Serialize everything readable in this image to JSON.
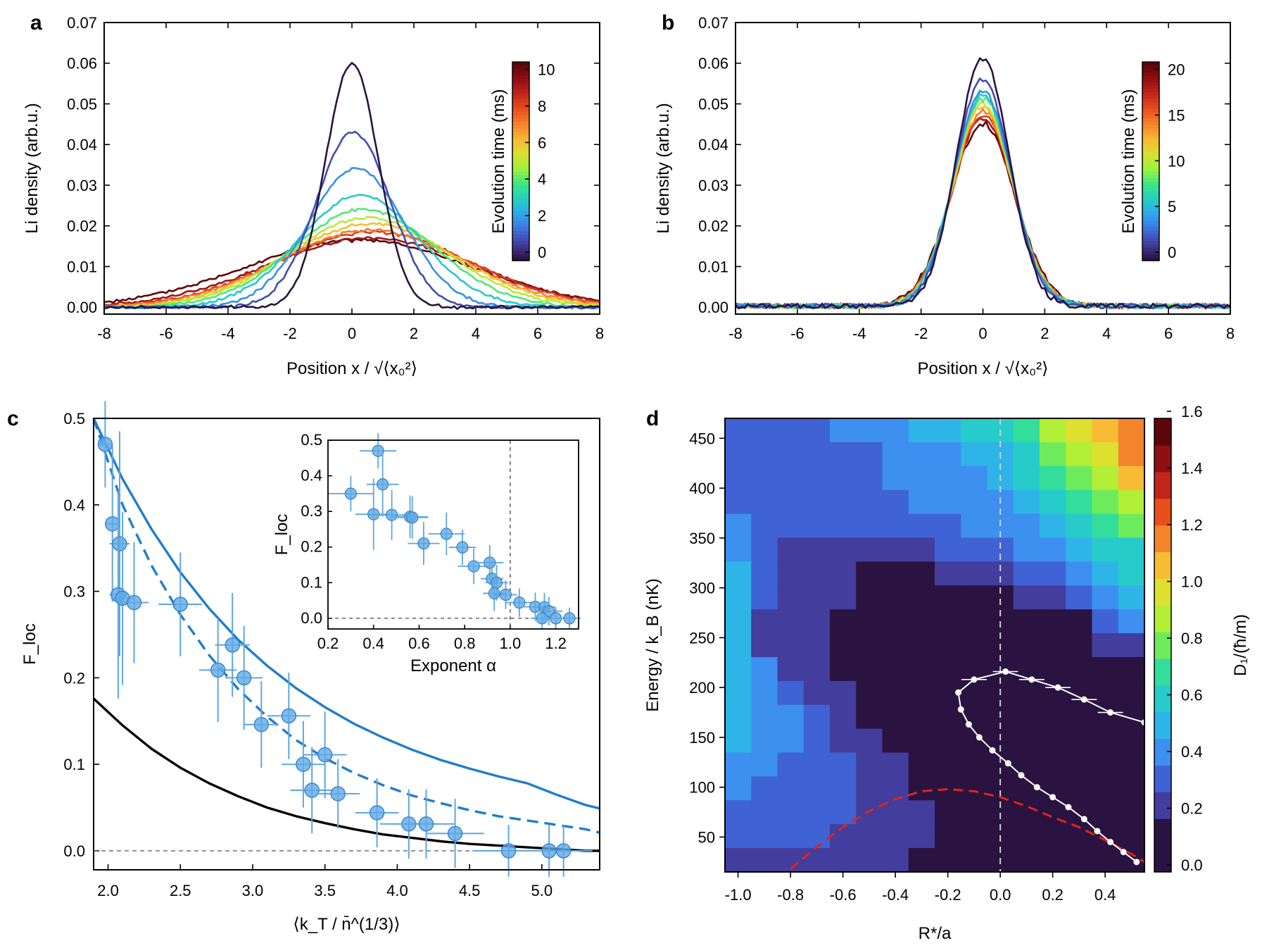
{
  "colormap": [
    "#2a1340",
    "#433d9d",
    "#3e72dc",
    "#2fa7ee",
    "#25cfc2",
    "#3ce584",
    "#9df23f",
    "#d8e030",
    "#f8b833",
    "#f7822a",
    "#e94e1d",
    "#c2261b",
    "#8f0f12",
    "#5c0609"
  ],
  "panels": {
    "a": {
      "label": "a",
      "xticks": [
        "-8",
        "-6",
        "-4",
        "-2",
        "0",
        "2",
        "4",
        "6",
        "8"
      ],
      "yticks": [
        "0.00",
        "0.01",
        "0.02",
        "0.03",
        "0.04",
        "0.05",
        "0.06",
        "0.07"
      ],
      "xlabel": "Position  x / √⟨x₀²⟩",
      "ylabel": "Li  density  (arb.u.)",
      "colorbar": {
        "label": "Evolution  time  (ms)",
        "ticks": [
          "0",
          "2",
          "4",
          "6",
          "8",
          "10"
        ]
      }
    },
    "b": {
      "label": "b",
      "xticks": [
        "-8",
        "-6",
        "-4",
        "-2",
        "0",
        "2",
        "4",
        "6",
        "8"
      ],
      "yticks": [
        "0.00",
        "0.01",
        "0.02",
        "0.03",
        "0.04",
        "0.05",
        "0.06",
        "0.07"
      ],
      "xlabel": "Position  x / √⟨x₀²⟩",
      "ylabel": "Li  density  (arb.u.)",
      "colorbar": {
        "label": "Evolution  time  (ms)",
        "ticks": [
          "0",
          "5",
          "10",
          "15",
          "20"
        ]
      }
    },
    "c": {
      "label": "c",
      "xticks": [
        "2.0",
        "2.5",
        "3.0",
        "3.5",
        "4.0",
        "4.5",
        "5.0"
      ],
      "yticks": [
        "0.0",
        "0.1",
        "0.2",
        "0.3",
        "0.4",
        "0.5"
      ],
      "xlabel": "⟨k_T / n̄^(1/3)⟩",
      "ylabel": "F_loc",
      "inset": {
        "xticks": [
          "0.2",
          "0.4",
          "0.6",
          "0.8",
          "1.0",
          "1.2"
        ],
        "yticks": [
          "0.0",
          "0.1",
          "0.2",
          "0.3",
          "0.4",
          "0.5"
        ],
        "xlabel": "Exponent α",
        "ylabel": "F_loc"
      }
    },
    "d": {
      "label": "d",
      "xticks": [
        "-1.0",
        "-0.8",
        "-0.6",
        "-0.4",
        "-0.2",
        "0.0",
        "0.2",
        "0.4"
      ],
      "yticks": [
        "50",
        "100",
        "150",
        "200",
        "250",
        "300",
        "350",
        "400",
        "450"
      ],
      "xlabel": "R*/a",
      "ylabel": "Energy / k_B  (nK)",
      "colorbar": {
        "label": "D₁/(ħ/m)",
        "ticks": [
          "0.0",
          "0.2",
          "0.4",
          "0.6",
          "0.8",
          "1.0",
          "1.2",
          "1.4",
          "1.6"
        ]
      }
    }
  },
  "chart_data": [
    {
      "panel": "a",
      "type": "line",
      "xlim": [
        -8,
        8
      ],
      "ylim": [
        0,
        0.07
      ],
      "series": [
        {
          "time_ms": 0,
          "peak": 0.06,
          "width": 0.85,
          "shift": 0.0
        },
        {
          "time_ms": 1,
          "peak": 0.043,
          "width": 1.2,
          "shift": 0.05
        },
        {
          "time_ms": 2,
          "peak": 0.034,
          "width": 1.55,
          "shift": 0.15
        },
        {
          "time_ms": 3,
          "peak": 0.0275,
          "width": 1.95,
          "shift": 0.25
        },
        {
          "time_ms": 4,
          "peak": 0.024,
          "width": 2.3,
          "shift": 0.4
        },
        {
          "time_ms": 5,
          "peak": 0.022,
          "width": 2.55,
          "shift": 0.5
        },
        {
          "time_ms": 6,
          "peak": 0.0205,
          "width": 2.75,
          "shift": 0.6
        },
        {
          "time_ms": 7,
          "peak": 0.019,
          "width": 2.95,
          "shift": 0.6
        },
        {
          "time_ms": 8,
          "peak": 0.0185,
          "width": 3.1,
          "shift": 0.7
        },
        {
          "time_ms": 9,
          "peak": 0.017,
          "width": 3.35,
          "shift": 0.6
        },
        {
          "time_ms": 10,
          "peak": 0.0165,
          "width": 3.6,
          "shift": 0.2
        }
      ]
    },
    {
      "panel": "b",
      "type": "line",
      "xlim": [
        -8,
        8
      ],
      "ylim": [
        0,
        0.07
      ],
      "series": [
        {
          "time_ms": 0,
          "peak": 0.061,
          "width": 0.85
        },
        {
          "time_ms": 2,
          "peak": 0.056,
          "width": 0.9
        },
        {
          "time_ms": 4,
          "peak": 0.053,
          "width": 0.93
        },
        {
          "time_ms": 6,
          "peak": 0.052,
          "width": 0.95
        },
        {
          "time_ms": 8,
          "peak": 0.051,
          "width": 0.96
        },
        {
          "time_ms": 10,
          "peak": 0.05,
          "width": 0.97
        },
        {
          "time_ms": 12,
          "peak": 0.049,
          "width": 0.98
        },
        {
          "time_ms": 14,
          "peak": 0.048,
          "width": 0.99
        },
        {
          "time_ms": 16,
          "peak": 0.047,
          "width": 1.0
        },
        {
          "time_ms": 18,
          "peak": 0.046,
          "width": 1.02
        },
        {
          "time_ms": 20,
          "peak": 0.045,
          "width": 1.04
        }
      ]
    },
    {
      "panel": "c",
      "type": "scatter",
      "xlim": [
        1.9,
        5.4
      ],
      "ylim": [
        -0.02,
        0.5
      ],
      "points": [
        {
          "x": 1.98,
          "y": 0.47,
          "xe": 0.05,
          "ye": 0.05
        },
        {
          "x": 2.03,
          "y": 0.378,
          "xe": 0.05,
          "ye": 0.09
        },
        {
          "x": 2.08,
          "y": 0.355,
          "xe": 0.07,
          "ye": 0.13
        },
        {
          "x": 2.07,
          "y": 0.296,
          "xe": 0.06,
          "ye": 0.12
        },
        {
          "x": 2.1,
          "y": 0.292,
          "xe": 0.08,
          "ye": 0.1
        },
        {
          "x": 2.18,
          "y": 0.287,
          "xe": 0.1,
          "ye": 0.07
        },
        {
          "x": 2.5,
          "y": 0.285,
          "xe": 0.15,
          "ye": 0.06
        },
        {
          "x": 2.86,
          "y": 0.238,
          "xe": 0.12,
          "ye": 0.06
        },
        {
          "x": 2.76,
          "y": 0.209,
          "xe": 0.13,
          "ye": 0.06
        },
        {
          "x": 2.94,
          "y": 0.2,
          "xe": 0.13,
          "ye": 0.06
        },
        {
          "x": 3.06,
          "y": 0.146,
          "xe": 0.12,
          "ye": 0.05
        },
        {
          "x": 3.25,
          "y": 0.156,
          "xe": 0.15,
          "ye": 0.05
        },
        {
          "x": 3.35,
          "y": 0.1,
          "xe": 0.15,
          "ye": 0.05
        },
        {
          "x": 3.5,
          "y": 0.111,
          "xe": 0.15,
          "ye": 0.05
        },
        {
          "x": 3.41,
          "y": 0.07,
          "xe": 0.15,
          "ye": 0.05
        },
        {
          "x": 3.59,
          "y": 0.066,
          "xe": 0.15,
          "ye": 0.04
        },
        {
          "x": 3.86,
          "y": 0.044,
          "xe": 0.15,
          "ye": 0.04
        },
        {
          "x": 4.08,
          "y": 0.031,
          "xe": 0.2,
          "ye": 0.04
        },
        {
          "x": 4.2,
          "y": 0.031,
          "xe": 0.2,
          "ye": 0.04
        },
        {
          "x": 4.4,
          "y": 0.02,
          "xe": 0.2,
          "ye": 0.04
        },
        {
          "x": 4.77,
          "y": 0.0,
          "xe": 0.25,
          "ye": 0.03
        },
        {
          "x": 5.05,
          "y": 0.0,
          "xe": 0.2,
          "ye": 0.03
        },
        {
          "x": 5.15,
          "y": 0.0,
          "xe": 0.2,
          "ye": 0.03
        }
      ],
      "curves": [
        {
          "style": "blue-solid",
          "xs": [
            1.9,
            2.1,
            2.3,
            2.5,
            2.7,
            2.9,
            3.1,
            3.3,
            3.5,
            3.7,
            3.9,
            4.1,
            4.3,
            4.5,
            4.7,
            4.9,
            5.1,
            5.3,
            5.4
          ],
          "ys": [
            0.5,
            0.43,
            0.372,
            0.322,
            0.28,
            0.244,
            0.214,
            0.188,
            0.166,
            0.147,
            0.131,
            0.117,
            0.105,
            0.095,
            0.086,
            0.078,
            0.065,
            0.053,
            0.049
          ]
        },
        {
          "style": "blue-dashed",
          "xs": [
            1.9,
            2.1,
            2.3,
            2.5,
            2.7,
            2.9,
            3.1,
            3.3,
            3.5,
            3.7,
            3.9,
            4.1,
            4.3,
            4.5,
            4.7,
            4.9,
            5.1,
            5.3,
            5.4
          ],
          "ys": [
            0.5,
            0.4,
            0.33,
            0.273,
            0.226,
            0.187,
            0.155,
            0.128,
            0.107,
            0.09,
            0.076,
            0.064,
            0.055,
            0.047,
            0.04,
            0.035,
            0.03,
            0.025,
            0.021
          ]
        },
        {
          "style": "black-solid",
          "xs": [
            1.9,
            2.1,
            2.3,
            2.5,
            2.7,
            2.9,
            3.1,
            3.3,
            3.5,
            3.7,
            3.9,
            4.1,
            4.3,
            4.5,
            4.7,
            4.9,
            5.1,
            5.3,
            5.4
          ],
          "ys": [
            0.176,
            0.145,
            0.118,
            0.096,
            0.078,
            0.063,
            0.05,
            0.04,
            0.032,
            0.025,
            0.019,
            0.015,
            0.011,
            0.008,
            0.006,
            0.004,
            0.002,
            0.0,
            0.0
          ]
        }
      ]
    },
    {
      "panel": "c-inset",
      "type": "scatter",
      "xlim": [
        0.2,
        1.3
      ],
      "ylim": [
        -0.03,
        0.5
      ],
      "points": [
        {
          "x": 0.3,
          "y": 0.35,
          "xe": 0.1,
          "ye": 0.05
        },
        {
          "x": 0.42,
          "y": 0.47,
          "xe": 0.08,
          "ye": 0.05
        },
        {
          "x": 0.44,
          "y": 0.376,
          "xe": 0.07,
          "ye": 0.09
        },
        {
          "x": 0.4,
          "y": 0.292,
          "xe": 0.08,
          "ye": 0.1
        },
        {
          "x": 0.48,
          "y": 0.29,
          "xe": 0.1,
          "ye": 0.07
        },
        {
          "x": 0.56,
          "y": 0.285,
          "xe": 0.08,
          "ye": 0.06
        },
        {
          "x": 0.57,
          "y": 0.283,
          "xe": 0.07,
          "ye": 0.06
        },
        {
          "x": 0.62,
          "y": 0.21,
          "xe": 0.07,
          "ye": 0.06
        },
        {
          "x": 0.72,
          "y": 0.237,
          "xe": 0.08,
          "ye": 0.06
        },
        {
          "x": 0.79,
          "y": 0.199,
          "xe": 0.06,
          "ye": 0.05
        },
        {
          "x": 0.84,
          "y": 0.146,
          "xe": 0.07,
          "ye": 0.05
        },
        {
          "x": 0.91,
          "y": 0.156,
          "xe": 0.06,
          "ye": 0.05
        },
        {
          "x": 0.92,
          "y": 0.111,
          "xe": 0.05,
          "ye": 0.05
        },
        {
          "x": 0.94,
          "y": 0.1,
          "xe": 0.05,
          "ye": 0.05
        },
        {
          "x": 0.93,
          "y": 0.07,
          "xe": 0.05,
          "ye": 0.05
        },
        {
          "x": 0.98,
          "y": 0.066,
          "xe": 0.05,
          "ye": 0.04
        },
        {
          "x": 1.04,
          "y": 0.044,
          "xe": 0.06,
          "ye": 0.04
        },
        {
          "x": 1.11,
          "y": 0.032,
          "xe": 0.05,
          "ye": 0.04
        },
        {
          "x": 1.15,
          "y": 0.031,
          "xe": 0.05,
          "ye": 0.04
        },
        {
          "x": 1.17,
          "y": 0.02,
          "xe": 0.06,
          "ye": 0.04
        },
        {
          "x": 1.14,
          "y": 0.0,
          "xe": 0.05,
          "ye": 0.03
        },
        {
          "x": 1.2,
          "y": 0.0,
          "xe": 0.05,
          "ye": 0.03
        },
        {
          "x": 1.26,
          "y": 0.0,
          "xe": 0.05,
          "ye": 0.03
        }
      ]
    },
    {
      "panel": "d",
      "type": "heatmap",
      "xlim": [
        -1.05,
        0.55
      ],
      "ylim": [
        15,
        470
      ],
      "zlim": [
        0,
        1.6
      ],
      "xbins": 16,
      "ybins": 19,
      "cells": [
        [
          2,
          2,
          2,
          2,
          3,
          3,
          3,
          4,
          4,
          5,
          5,
          6,
          8,
          9,
          10,
          11
        ],
        [
          2,
          2,
          2,
          2,
          2,
          2,
          3,
          3,
          3,
          4,
          4,
          5,
          7,
          8,
          9,
          11
        ],
        [
          2,
          2,
          2,
          2,
          2,
          2,
          3,
          3,
          3,
          3,
          4,
          5,
          6,
          7,
          8,
          10
        ],
        [
          2,
          2,
          2,
          2,
          2,
          2,
          2,
          3,
          3,
          3,
          3,
          4,
          5,
          6,
          7,
          8
        ],
        [
          3,
          2,
          2,
          2,
          2,
          2,
          2,
          2,
          2,
          3,
          3,
          3,
          4,
          5,
          6,
          7
        ],
        [
          3,
          2,
          1,
          1,
          1,
          1,
          1,
          1,
          2,
          2,
          2,
          3,
          3,
          4,
          5,
          5
        ],
        [
          4,
          2,
          1,
          1,
          1,
          0,
          0,
          0,
          1,
          1,
          1,
          2,
          2,
          3,
          4,
          5
        ],
        [
          4,
          2,
          1,
          1,
          1,
          0,
          0,
          0,
          0,
          0,
          0,
          1,
          1,
          2,
          3,
          4
        ],
        [
          4,
          1,
          1,
          1,
          0,
          0,
          0,
          0,
          0,
          0,
          0,
          0,
          0,
          0,
          2,
          3
        ],
        [
          4,
          1,
          1,
          1,
          0,
          0,
          0,
          0,
          0,
          0,
          0,
          0,
          0,
          0,
          1,
          1
        ],
        [
          4,
          3,
          1,
          1,
          0,
          0,
          0,
          0,
          0,
          0,
          0,
          0,
          0,
          0,
          0,
          0
        ],
        [
          4,
          3,
          2,
          1,
          1,
          0,
          0,
          0,
          0,
          0,
          0,
          0,
          0,
          0,
          0,
          0
        ],
        [
          4,
          3,
          3,
          2,
          1,
          0,
          0,
          0,
          0,
          0,
          0,
          0,
          0,
          0,
          0,
          0
        ],
        [
          4,
          3,
          3,
          2,
          1,
          1,
          0,
          0,
          0,
          0,
          0,
          0,
          0,
          0,
          0,
          0
        ],
        [
          3,
          3,
          2,
          2,
          2,
          1,
          1,
          0,
          0,
          0,
          0,
          0,
          0,
          0,
          0,
          0
        ],
        [
          3,
          2,
          2,
          2,
          2,
          1,
          1,
          0,
          0,
          0,
          0,
          0,
          0,
          0,
          0,
          0
        ],
        [
          2,
          2,
          2,
          2,
          2,
          1,
          1,
          1,
          0,
          0,
          0,
          0,
          0,
          0,
          0,
          0
        ],
        [
          2,
          2,
          2,
          2,
          1,
          1,
          1,
          1,
          0,
          0,
          0,
          0,
          0,
          0,
          0,
          0
        ],
        [
          1,
          1,
          1,
          1,
          1,
          1,
          1,
          0,
          0,
          0,
          0,
          0,
          0,
          0,
          0,
          0
        ]
      ],
      "white_curve": [
        {
          "x": 0.55,
          "y": 165
        },
        {
          "x": 0.42,
          "y": 175
        },
        {
          "x": 0.32,
          "y": 188
        },
        {
          "x": 0.22,
          "y": 200
        },
        {
          "x": 0.12,
          "y": 208
        },
        {
          "x": 0.02,
          "y": 216
        },
        {
          "x": -0.1,
          "y": 208
        },
        {
          "x": -0.16,
          "y": 195
        },
        {
          "x": -0.15,
          "y": 178
        },
        {
          "x": -0.12,
          "y": 163
        },
        {
          "x": -0.08,
          "y": 150
        },
        {
          "x": -0.03,
          "y": 137
        },
        {
          "x": 0.03,
          "y": 124
        },
        {
          "x": 0.08,
          "y": 112
        },
        {
          "x": 0.14,
          "y": 100
        },
        {
          "x": 0.2,
          "y": 90
        },
        {
          "x": 0.26,
          "y": 80
        },
        {
          "x": 0.32,
          "y": 68
        },
        {
          "x": 0.37,
          "y": 56
        },
        {
          "x": 0.42,
          "y": 45
        },
        {
          "x": 0.47,
          "y": 35
        },
        {
          "x": 0.52,
          "y": 25
        }
      ],
      "red_dashed": {
        "xs": [
          -0.9,
          -0.8,
          -0.7,
          -0.6,
          -0.5,
          -0.4,
          -0.3,
          -0.2,
          -0.1,
          0.0,
          0.1,
          0.2,
          0.3,
          0.4,
          0.5,
          0.55
        ],
        "ys": [
          0,
          18,
          40,
          60,
          76,
          88,
          96,
          98,
          96,
          90,
          81,
          70,
          60,
          47,
          33,
          25
        ]
      }
    }
  ]
}
